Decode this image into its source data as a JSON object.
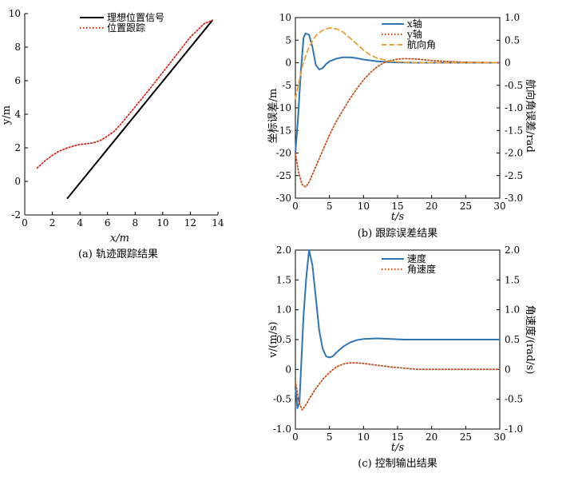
{
  "chart_data": [
    {
      "id": "a",
      "type": "line",
      "caption": "(a) 轨迹跟踪结果",
      "xlabel": "x/m",
      "ylabel": "y/m",
      "xlim": [
        0,
        14
      ],
      "ylim": [
        -2,
        10
      ],
      "xticks": [
        0,
        2,
        4,
        6,
        8,
        10,
        12,
        14
      ],
      "yticks": [
        -2,
        0,
        2,
        4,
        6,
        8,
        10
      ],
      "series": [
        {
          "name": "理想位置信号",
          "color": "#000000",
          "style": "solid",
          "x": [
            3.1,
            13.6
          ],
          "y": [
            -1.0,
            9.6
          ]
        },
        {
          "name": "位置跟踪",
          "color": "#d62c1f",
          "style": "dotted",
          "x": [
            0.9,
            1.5,
            2.0,
            2.5,
            3.0,
            3.5,
            4.0,
            4.5,
            5.0,
            5.5,
            6.0,
            6.5,
            7.0,
            7.5,
            8.0,
            9.0,
            10.0,
            11.0,
            12.0,
            13.0,
            13.6
          ],
          "y": [
            0.8,
            1.25,
            1.55,
            1.8,
            1.97,
            2.1,
            2.2,
            2.25,
            2.3,
            2.45,
            2.7,
            3.0,
            3.45,
            3.95,
            4.45,
            5.45,
            6.5,
            7.55,
            8.6,
            9.4,
            9.6
          ]
        }
      ]
    },
    {
      "id": "b",
      "type": "line",
      "caption": "(b) 跟踪误差结果",
      "xlabel": "t/s",
      "ylabel": "坐标误差/m",
      "ylabel_right": "航向角误差/rad",
      "xlim": [
        0,
        30
      ],
      "ylim": [
        -30,
        10
      ],
      "ylim_right": [
        -3.0,
        1.0
      ],
      "xticks": [
        0,
        5,
        10,
        15,
        20,
        25,
        30
      ],
      "yticks": [
        -30,
        -25,
        -20,
        -15,
        -10,
        -5,
        0,
        5,
        10
      ],
      "yticks_right": [
        -3.0,
        -2.5,
        -2.0,
        -1.5,
        -1.0,
        -0.5,
        0,
        0.5,
        1.0
      ],
      "series": [
        {
          "name": "x轴",
          "color": "#2e75b6",
          "style": "solid",
          "axis": "left",
          "x": [
            0,
            0.4,
            0.8,
            1.2,
            1.5,
            2.0,
            2.5,
            3.0,
            3.5,
            4.0,
            4.5,
            5.0,
            6.0,
            7.0,
            8.0,
            9.0,
            10.0,
            12.0,
            14.0,
            16.0,
            18.0,
            20.0,
            25.0,
            30.0
          ],
          "y": [
            -20,
            -12,
            -2,
            5.5,
            6.5,
            6.2,
            3.5,
            -0.5,
            -1.5,
            -1.2,
            -0.3,
            0.3,
            0.9,
            1.2,
            1.2,
            1.0,
            0.7,
            0.3,
            0.1,
            0.05,
            0.0,
            0.0,
            0.0,
            0.0
          ]
        },
        {
          "name": "y轴",
          "color": "#c5501b",
          "style": "dotted",
          "axis": "left",
          "x": [
            0,
            0.5,
            1.0,
            1.5,
            2.0,
            3.0,
            4.0,
            5.0,
            6.0,
            7.0,
            8.0,
            9.0,
            10.0,
            11.0,
            12.0,
            13.0,
            14.0,
            15.0,
            16.0,
            18.0,
            20.0,
            22.0,
            25.0,
            30.0
          ],
          "y": [
            -20,
            -24.5,
            -27.0,
            -27.5,
            -26.5,
            -23.0,
            -19.5,
            -16.0,
            -13.0,
            -10.5,
            -8.0,
            -5.8,
            -3.8,
            -2.2,
            -0.9,
            0.0,
            0.5,
            0.8,
            0.9,
            0.8,
            0.5,
            0.3,
            0.1,
            0.0
          ]
        },
        {
          "name": "航向角",
          "color": "#e8a13a",
          "style": "dashed",
          "axis": "right",
          "x": [
            0,
            0.5,
            1.0,
            1.5,
            2.0,
            3.0,
            4.0,
            5.0,
            6.0,
            7.0,
            8.0,
            9.0,
            10.0,
            11.0,
            12.0,
            14.0,
            16.0,
            18.0,
            20.0,
            25.0,
            30.0
          ],
          "y": [
            -0.8,
            -0.45,
            -0.1,
            0.15,
            0.35,
            0.6,
            0.72,
            0.77,
            0.75,
            0.68,
            0.55,
            0.42,
            0.28,
            0.17,
            0.1,
            0.03,
            0.01,
            0.0,
            0.0,
            0.0,
            0.0
          ]
        }
      ]
    },
    {
      "id": "c",
      "type": "line",
      "caption": "(c) 控制输出结果",
      "xlabel": "t/s",
      "ylabel": "v/(m/s)",
      "ylabel_right": "角速度/(rad/s)",
      "xlim": [
        0,
        30
      ],
      "ylim": [
        -1.0,
        2.0
      ],
      "ylim_right": [
        -1.0,
        2.0
      ],
      "xticks": [
        0,
        5,
        10,
        15,
        20,
        25,
        30
      ],
      "yticks": [
        -1.0,
        -0.5,
        0,
        0.5,
        1.0,
        1.5,
        2.0
      ],
      "yticks_right": [
        -1.0,
        -0.5,
        0,
        0.5,
        1.0,
        1.5,
        2.0
      ],
      "series": [
        {
          "name": "速度",
          "color": "#2e75b6",
          "style": "solid",
          "axis": "left",
          "x": [
            0,
            0.3,
            0.6,
            0.9,
            1.2,
            1.6,
            2.0,
            2.5,
            3.0,
            3.5,
            4.0,
            4.5,
            5.0,
            5.5,
            6.0,
            7.0,
            8.0,
            9.0,
            10.0,
            12.0,
            14.0,
            16.0,
            20.0,
            25.0,
            30.0
          ],
          "y": [
            -0.3,
            -0.65,
            -0.55,
            0.2,
            0.9,
            1.55,
            2.0,
            1.75,
            1.2,
            0.65,
            0.35,
            0.22,
            0.2,
            0.22,
            0.28,
            0.38,
            0.45,
            0.49,
            0.51,
            0.52,
            0.51,
            0.5,
            0.5,
            0.5,
            0.5
          ]
        },
        {
          "name": "角速度",
          "color": "#c5501b",
          "style": "dotted",
          "axis": "right",
          "x": [
            0,
            0.5,
            1.0,
            1.5,
            2.0,
            3.0,
            4.0,
            5.0,
            6.0,
            7.0,
            8.0,
            9.0,
            10.0,
            12.0,
            14.0,
            16.0,
            18.0,
            20.0,
            25.0,
            30.0
          ],
          "y": [
            -0.2,
            -0.55,
            -0.68,
            -0.6,
            -0.5,
            -0.32,
            -0.17,
            -0.05,
            0.04,
            0.09,
            0.11,
            0.11,
            0.1,
            0.07,
            0.04,
            0.02,
            0.0,
            0.0,
            0.0,
            0.0
          ]
        }
      ]
    }
  ]
}
